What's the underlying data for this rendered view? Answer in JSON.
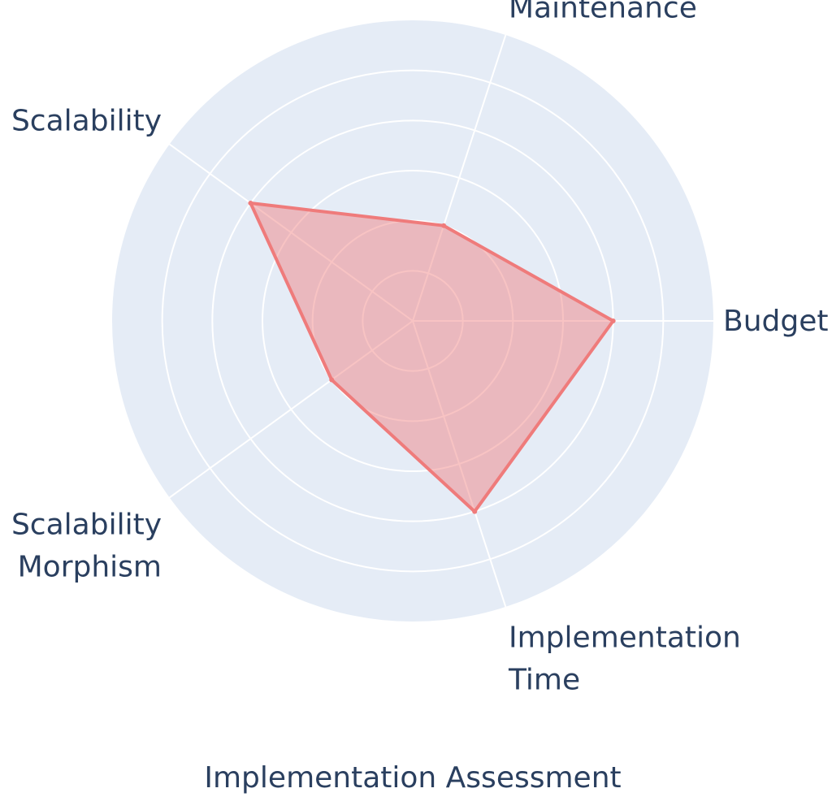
{
  "chart_data": {
    "type": "radar",
    "title": "Implementation Assessment",
    "axes": [
      {
        "lines": [
          "Budget"
        ]
      },
      {
        "lines": [
          "Maintenance"
        ]
      },
      {
        "lines": [
          "Scalability"
        ]
      },
      {
        "lines": [
          "Scalability",
          "Morphism"
        ]
      },
      {
        "lines": [
          "Implementation",
          "Time"
        ]
      }
    ],
    "values": [
      4,
      2,
      4,
      2,
      4
    ],
    "radial_range": [
      0,
      6
    ],
    "grid_levels": [
      1,
      2,
      3,
      4,
      5,
      6
    ],
    "grid": true,
    "legend": false,
    "colors": {
      "polar_bg": "#e5ecf6",
      "grid": "#ffffff",
      "series_line": "#ef7b7b",
      "series_fill": "rgba(239,123,123,0.45)",
      "text": "#2a3f5f"
    }
  }
}
